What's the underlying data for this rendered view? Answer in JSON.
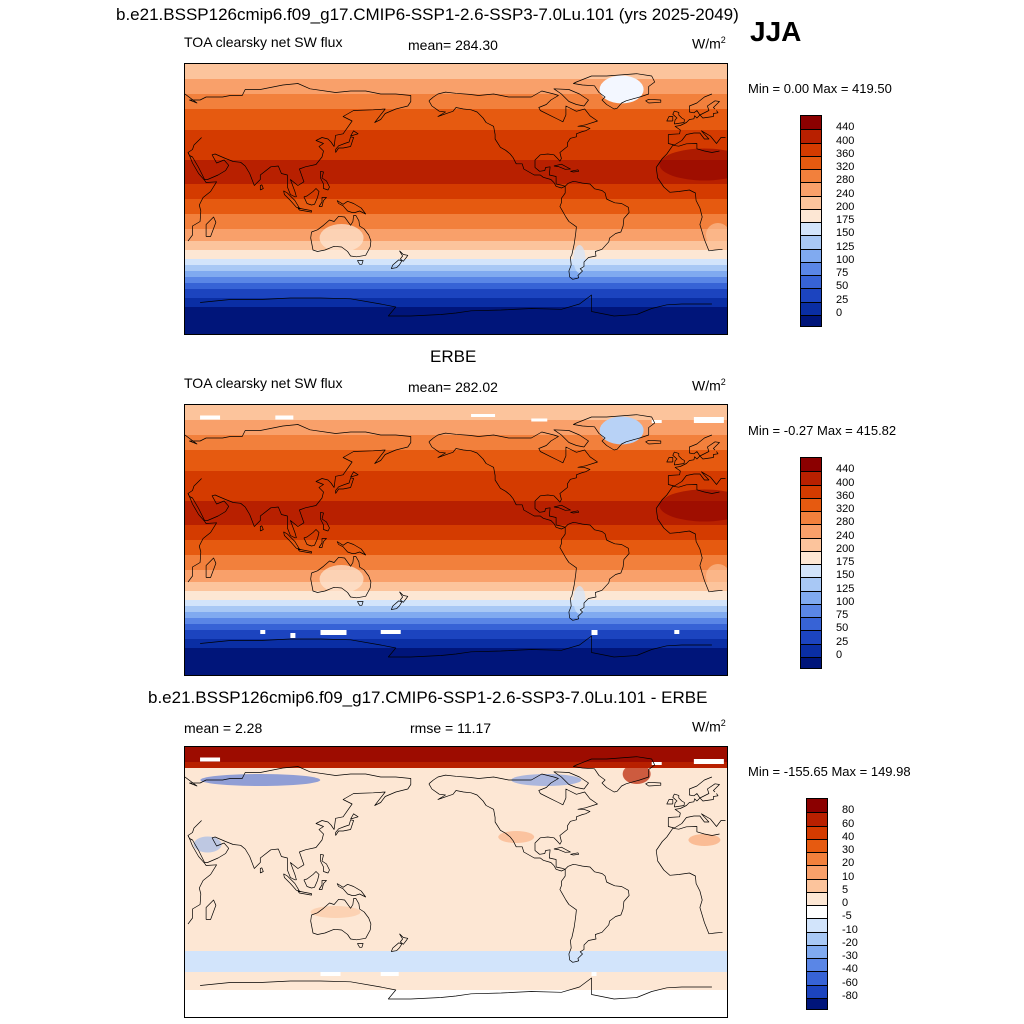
{
  "title": "b.e21.BSSP126cmip6.f09_g17.CMIP6-SSP1-2.6-SSP3-7.0Lu.101 (yrs 2025-2049)",
  "season": "JJA",
  "panels": [
    {
      "header": "",
      "left_label": "TOA clearsky net SW flux",
      "center_label": "mean= 284.30",
      "units": "W/m",
      "units_sup": "2",
      "minmax": "Min =   0.00 Max = 419.50",
      "levels": [
        "440",
        "400",
        "360",
        "320",
        "280",
        "240",
        "200",
        "175",
        "150",
        "125",
        "100",
        "75",
        "50",
        "25",
        "0"
      ],
      "colors": [
        "#8b0000",
        "#b82000",
        "#d43b00",
        "#e65a10",
        "#f2803c",
        "#f9a06a",
        "#fcc49c",
        "#fde7d4",
        "#d2e4fb",
        "#a8c8f5",
        "#80aaf0",
        "#5a86e6",
        "#3763d6",
        "#1c44bf",
        "#0a2ea4",
        "#00157a"
      ],
      "field": "model"
    },
    {
      "header": "ERBE",
      "left_label": "TOA clearsky net SW flux",
      "center_label": "mean= 282.02",
      "units": "W/m",
      "units_sup": "2",
      "minmax": "Min =  -0.27 Max = 415.82",
      "levels": [
        "440",
        "400",
        "360",
        "320",
        "280",
        "240",
        "200",
        "175",
        "150",
        "125",
        "100",
        "75",
        "50",
        "25",
        "0"
      ],
      "colors": [
        "#8b0000",
        "#b82000",
        "#d43b00",
        "#e65a10",
        "#f2803c",
        "#f9a06a",
        "#fcc49c",
        "#fde7d4",
        "#d2e4fb",
        "#a8c8f5",
        "#80aaf0",
        "#5a86e6",
        "#3763d6",
        "#1c44bf",
        "#0a2ea4",
        "#00157a"
      ],
      "field": "obs"
    },
    {
      "header": "b.e21.BSSP126cmip6.f09_g17.CMIP6-SSP1-2.6-SSP3-7.0Lu.101 - ERBE",
      "left_label": "mean =   2.28",
      "center_label": "rmse =  11.17",
      "units": "W/m",
      "units_sup": "2",
      "minmax": "Min = -155.65 Max = 149.98",
      "levels": [
        "80",
        "60",
        "40",
        "30",
        "20",
        "10",
        "5",
        "0",
        "-5",
        "-10",
        "-20",
        "-30",
        "-40",
        "-60",
        "-80"
      ],
      "colors": [
        "#8b0000",
        "#b82000",
        "#d43b00",
        "#e65a10",
        "#f2803c",
        "#f9a06a",
        "#fcc49c",
        "#fde7d4",
        "#ffffff",
        "#d2e4fb",
        "#a8c8f5",
        "#80aaf0",
        "#5a86e6",
        "#3763d6",
        "#1c44bf",
        "#00157a"
      ],
      "field": "diff"
    }
  ]
}
